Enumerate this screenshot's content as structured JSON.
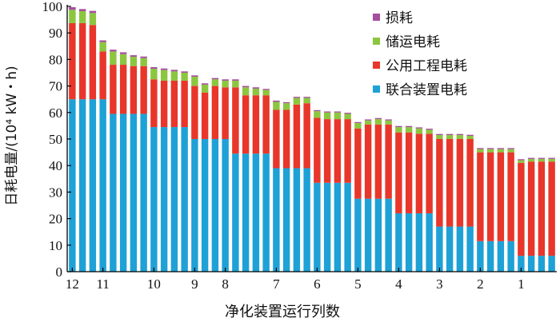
{
  "chart_data": {
    "type": "bar",
    "stacked": true,
    "xlabel": "净化装置运行列数",
    "ylabel": "日耗电量/(10⁴ kW・h)",
    "ylim": [
      0,
      100
    ],
    "yticks": [
      0,
      10,
      20,
      30,
      40,
      50,
      60,
      70,
      80,
      90,
      100
    ],
    "grid": false,
    "legend_position": "top-right",
    "group_labels": [
      "12",
      "11",
      "10",
      "9",
      "8",
      "7",
      "6",
      "5",
      "4",
      "3",
      "2",
      "1"
    ],
    "groups": [
      {
        "label": "12",
        "bars": [
          {
            "u": 65.0,
            "p": 28.7,
            "s": 5.0,
            "l": 1.0
          },
          {
            "u": 65.0,
            "p": 28.7,
            "s": 4.5,
            "l": 0.8
          },
          {
            "u": 65.0,
            "p": 28.0,
            "s": 4.5,
            "l": 0.8
          }
        ]
      },
      {
        "label": "11",
        "bars": [
          {
            "u": 65.0,
            "p": 18.0,
            "s": 3.5,
            "l": 0.7
          },
          {
            "u": 59.5,
            "p": 18.5,
            "s": 5.0,
            "l": 0.7
          },
          {
            "u": 59.5,
            "p": 18.5,
            "s": 4.0,
            "l": 0.7
          },
          {
            "u": 59.5,
            "p": 18.0,
            "s": 3.5,
            "l": 0.6
          },
          {
            "u": 59.5,
            "p": 18.0,
            "s": 3.0,
            "l": 0.6
          }
        ]
      },
      {
        "label": "10",
        "bars": [
          {
            "u": 54.5,
            "p": 18.0,
            "s": 4.0,
            "l": 0.6
          },
          {
            "u": 54.5,
            "p": 17.5,
            "s": 4.0,
            "l": 0.6
          },
          {
            "u": 54.5,
            "p": 17.5,
            "s": 3.5,
            "l": 0.6
          },
          {
            "u": 54.5,
            "p": 17.5,
            "s": 3.0,
            "l": 0.5
          }
        ]
      },
      {
        "label": "9",
        "bars": [
          {
            "u": 50.0,
            "p": 20.0,
            "s": 3.5,
            "l": 0.5
          },
          {
            "u": 50.0,
            "p": 17.5,
            "s": 3.0,
            "l": 0.5
          },
          {
            "u": 50.0,
            "p": 20.0,
            "s": 2.5,
            "l": 0.5
          }
        ]
      },
      {
        "label": "8",
        "bars": [
          {
            "u": 50.0,
            "p": 19.5,
            "s": 2.5,
            "l": 0.5
          },
          {
            "u": 44.5,
            "p": 25.0,
            "s": 2.5,
            "l": 0.5
          },
          {
            "u": 44.5,
            "p": 22.0,
            "s": 3.0,
            "l": 0.5
          },
          {
            "u": 44.5,
            "p": 22.0,
            "s": 2.5,
            "l": 0.5
          },
          {
            "u": 44.5,
            "p": 22.0,
            "s": 2.0,
            "l": 0.4
          }
        ]
      },
      {
        "label": "7",
        "bars": [
          {
            "u": 39.0,
            "p": 22.0,
            "s": 3.0,
            "l": 0.5
          },
          {
            "u": 39.0,
            "p": 22.0,
            "s": 2.5,
            "l": 0.4
          },
          {
            "u": 39.0,
            "p": 24.0,
            "s": 2.5,
            "l": 0.4
          },
          {
            "u": 39.0,
            "p": 24.5,
            "s": 2.0,
            "l": 0.4
          }
        ]
      },
      {
        "label": "6",
        "bars": [
          {
            "u": 33.5,
            "p": 24.5,
            "s": 2.5,
            "l": 0.4
          },
          {
            "u": 33.5,
            "p": 24.0,
            "s": 2.5,
            "l": 0.4
          },
          {
            "u": 33.5,
            "p": 24.0,
            "s": 2.5,
            "l": 0.4
          },
          {
            "u": 33.5,
            "p": 24.0,
            "s": 2.0,
            "l": 0.4
          }
        ]
      },
      {
        "label": "5",
        "bars": [
          {
            "u": 27.5,
            "p": 26.5,
            "s": 2.0,
            "l": 0.4
          },
          {
            "u": 27.5,
            "p": 28.0,
            "s": 1.5,
            "l": 0.4
          },
          {
            "u": 27.5,
            "p": 28.0,
            "s": 2.0,
            "l": 0.4
          },
          {
            "u": 27.5,
            "p": 28.0,
            "s": 1.5,
            "l": 0.4
          }
        ]
      },
      {
        "label": "4",
        "bars": [
          {
            "u": 22.0,
            "p": 30.5,
            "s": 2.0,
            "l": 0.4
          },
          {
            "u": 22.0,
            "p": 30.5,
            "s": 2.0,
            "l": 0.4
          },
          {
            "u": 22.0,
            "p": 30.0,
            "s": 2.0,
            "l": 0.4
          },
          {
            "u": 22.0,
            "p": 30.0,
            "s": 1.5,
            "l": 0.4
          }
        ]
      },
      {
        "label": "3",
        "bars": [
          {
            "u": 17.0,
            "p": 33.0,
            "s": 1.5,
            "l": 0.4
          },
          {
            "u": 17.0,
            "p": 33.0,
            "s": 1.5,
            "l": 0.4
          },
          {
            "u": 17.0,
            "p": 33.0,
            "s": 1.5,
            "l": 0.4
          },
          {
            "u": 17.0,
            "p": 33.0,
            "s": 1.2,
            "l": 0.4
          }
        ]
      },
      {
        "label": "2",
        "bars": [
          {
            "u": 11.5,
            "p": 33.5,
            "s": 1.2,
            "l": 0.4
          },
          {
            "u": 11.5,
            "p": 33.5,
            "s": 1.2,
            "l": 0.4
          },
          {
            "u": 11.5,
            "p": 33.5,
            "s": 1.2,
            "l": 0.4
          },
          {
            "u": 11.5,
            "p": 33.5,
            "s": 1.2,
            "l": 0.4
          }
        ]
      },
      {
        "label": "1",
        "bars": [
          {
            "u": 6.0,
            "p": 35.0,
            "s": 1.0,
            "l": 0.4
          },
          {
            "u": 6.0,
            "p": 35.5,
            "s": 1.0,
            "l": 0.4
          },
          {
            "u": 6.0,
            "p": 35.5,
            "s": 1.0,
            "l": 0.4
          },
          {
            "u": 6.0,
            "p": 35.5,
            "s": 1.0,
            "l": 0.4
          }
        ]
      }
    ],
    "series": [
      {
        "key": "u",
        "name": "联合装置电耗",
        "color": "#1ea1d6"
      },
      {
        "key": "p",
        "name": "公用工程电耗",
        "color": "#e8362b"
      },
      {
        "key": "s",
        "name": "储运电耗",
        "color": "#8cc63f"
      },
      {
        "key": "l",
        "name": "损耗",
        "color": "#a64f9d"
      }
    ],
    "legend_order": [
      "l",
      "s",
      "p",
      "u"
    ]
  }
}
